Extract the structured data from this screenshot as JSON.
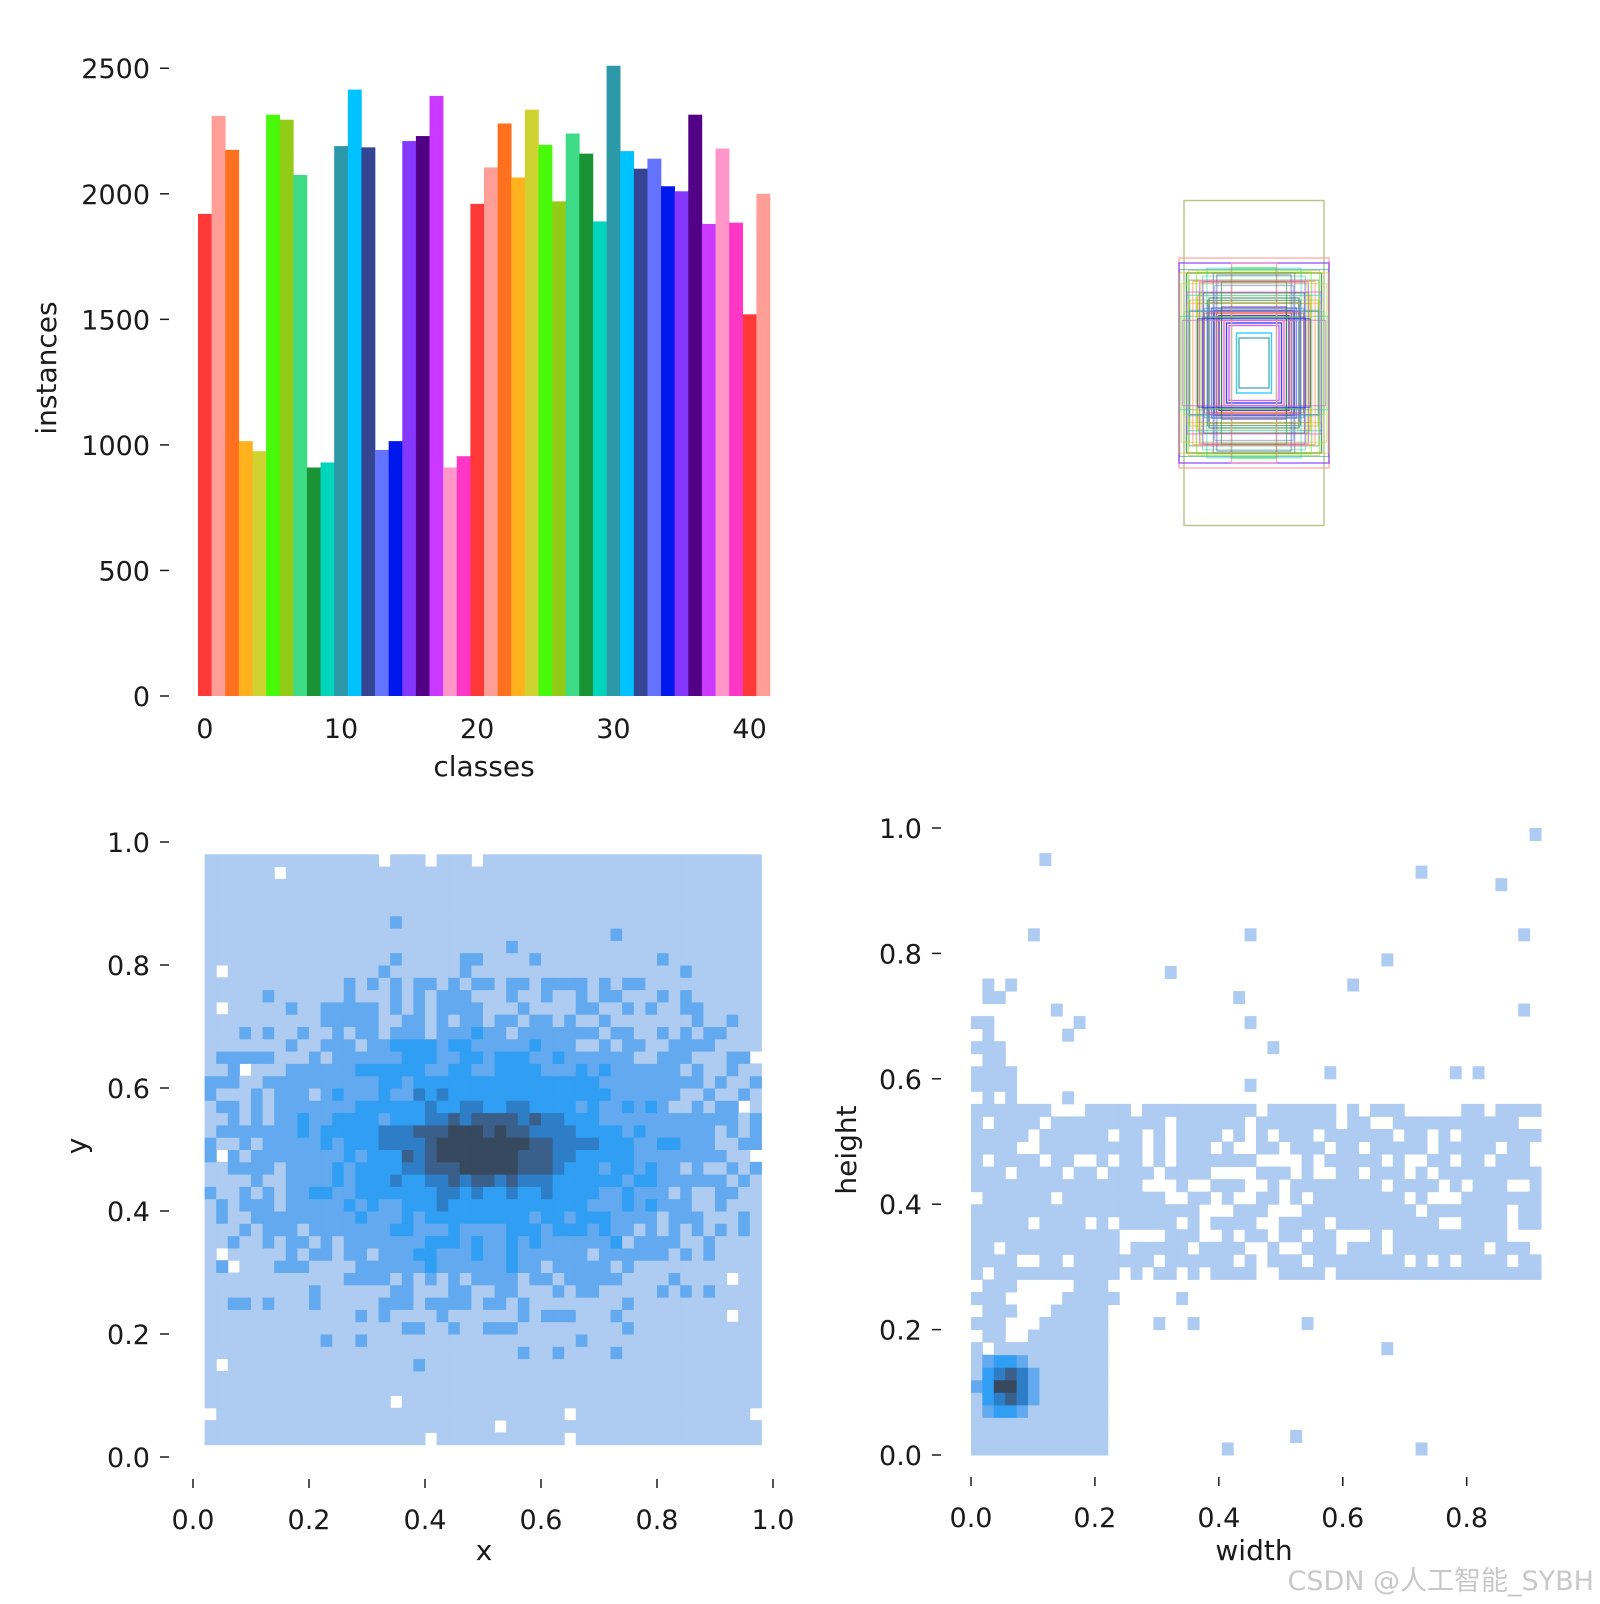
{
  "chart_data": [
    {
      "type": "bar",
      "panel": "top-left",
      "xlabel": "classes",
      "ylabel": "instances",
      "ylim": [
        0,
        2500
      ],
      "yticks": [
        "0",
        "500",
        "1000",
        "1500",
        "2000",
        "2500"
      ],
      "xticks": [
        "0",
        "10",
        "20",
        "30",
        "40"
      ],
      "categories": [
        0,
        1,
        2,
        3,
        4,
        5,
        6,
        7,
        8,
        9,
        10,
        11,
        12,
        13,
        14,
        15,
        16,
        17,
        18,
        19,
        20,
        21,
        22,
        23,
        24,
        25,
        26,
        27,
        28,
        29,
        30,
        31,
        32,
        33,
        34,
        35,
        36,
        37,
        38,
        39,
        40,
        41
      ],
      "values": [
        1920,
        2310,
        2175,
        1015,
        975,
        2315,
        2295,
        2075,
        910,
        930,
        2190,
        2415,
        2185,
        980,
        1015,
        2210,
        2230,
        2390,
        910,
        955,
        1960,
        2105,
        2280,
        2065,
        2335,
        2195,
        1970,
        2240,
        2160,
        1890,
        2510,
        2170,
        2100,
        2140,
        2030,
        2010,
        2315,
        1880,
        2180,
        1885,
        1520,
        2000
      ],
      "colors": [
        "#ff3838",
        "#ff9d97",
        "#ff701f",
        "#ffb21d",
        "#cfd231",
        "#48f90a",
        "#92cc17",
        "#3ddb86",
        "#1a9334",
        "#00d4bb",
        "#2c99a8",
        "#00c2ff",
        "#344593",
        "#6473ff",
        "#0018ec",
        "#8438ff",
        "#520085",
        "#cb38ff",
        "#ff95c8",
        "#ff37c7",
        "#ff3838",
        "#ff9d97",
        "#ff701f",
        "#ffb21d",
        "#cfd231",
        "#48f90a",
        "#92cc17",
        "#3ddb86",
        "#1a9334",
        "#00d4bb",
        "#2c99a8",
        "#00c2ff",
        "#344593",
        "#6473ff",
        "#0018ec",
        "#8438ff",
        "#520085",
        "#cb38ff",
        "#ff95c8",
        "#ff37c7",
        "#ff3838",
        "#ff9d97"
      ]
    },
    {
      "type": "box_overlay",
      "panel": "top-right",
      "description_sizes": [
        {
          "w": 0.28,
          "h": 0.65,
          "color": "#aab26a"
        },
        {
          "w": 0.3,
          "h": 0.42,
          "color": "#ff9d97"
        },
        {
          "w": 0.3,
          "h": 0.4,
          "color": "#8438ff"
        },
        {
          "w": 0.27,
          "h": 0.36,
          "color": "#1a9334"
        },
        {
          "w": 0.22,
          "h": 0.28,
          "color": "#cfd231"
        },
        {
          "w": 0.18,
          "h": 0.26,
          "color": "#2c99a8"
        },
        {
          "w": 0.18,
          "h": 0.24,
          "color": "#7a7a7a"
        },
        {
          "w": 0.17,
          "h": 0.22,
          "color": "#6473ff"
        },
        {
          "w": 0.16,
          "h": 0.21,
          "color": "#344593"
        },
        {
          "w": 0.15,
          "h": 0.2,
          "color": "#ff701f"
        },
        {
          "w": 0.14,
          "h": 0.19,
          "color": "#520085"
        },
        {
          "w": 0.13,
          "h": 0.18,
          "color": "#3ddb86"
        },
        {
          "w": 0.12,
          "h": 0.17,
          "color": "#ff37c7"
        },
        {
          "w": 0.11,
          "h": 0.16,
          "color": "#0018ec"
        },
        {
          "w": 0.1,
          "h": 0.15,
          "color": "#cb38ff"
        },
        {
          "w": 0.09,
          "h": 0.38,
          "color": "#48f90a"
        },
        {
          "w": 0.09,
          "h": 0.4,
          "color": "#ff95c8"
        },
        {
          "w": 0.07,
          "h": 0.12,
          "color": "#00c2ff"
        },
        {
          "w": 0.06,
          "h": 0.1,
          "color": "#2c99a8"
        }
      ]
    },
    {
      "type": "heatmap",
      "panel": "bottom-left",
      "xlabel": "x",
      "ylabel": "y",
      "xlim": [
        0,
        1
      ],
      "ylim": [
        0,
        1
      ],
      "xticks": [
        "0.0",
        "0.2",
        "0.4",
        "0.6",
        "0.8",
        "1.0"
      ],
      "yticks": [
        "0.0",
        "0.2",
        "0.4",
        "0.6",
        "0.8",
        "1.0"
      ],
      "bins": 50,
      "description": "2D histogram of box centers; highest density around x≈0.5, y≈0.5, broadly filled over [0.02,0.98]x[0.02,0.98]",
      "peak": {
        "x": 0.5,
        "y": 0.5
      },
      "colors": [
        "#aecbf1",
        "#62a9ef",
        "#2f9ef3",
        "#2d7ec7",
        "#3a5f8a",
        "#36495f"
      ]
    },
    {
      "type": "heatmap",
      "panel": "bottom-right",
      "xlabel": "width",
      "ylabel": "height",
      "xlim": [
        0,
        0.92
      ],
      "ylim": [
        0,
        1.0
      ],
      "xticks": [
        "0.0",
        "0.2",
        "0.4",
        "0.6",
        "0.8"
      ],
      "yticks": [
        "0.0",
        "0.2",
        "0.4",
        "0.6",
        "0.8",
        "1.0"
      ],
      "bins": 50,
      "description": "2D histogram of box sizes; dense cluster near width≈0.05, height≈0.1, band at height 0.3–0.55 across widths",
      "peak": {
        "x": 0.06,
        "y": 0.11
      },
      "colors": [
        "#aecbf1",
        "#62a9ef",
        "#2f9ef3",
        "#2d7ec7",
        "#3a5f8a",
        "#36495f"
      ]
    }
  ],
  "watermark": "CSDN @人工智能_SYBH"
}
